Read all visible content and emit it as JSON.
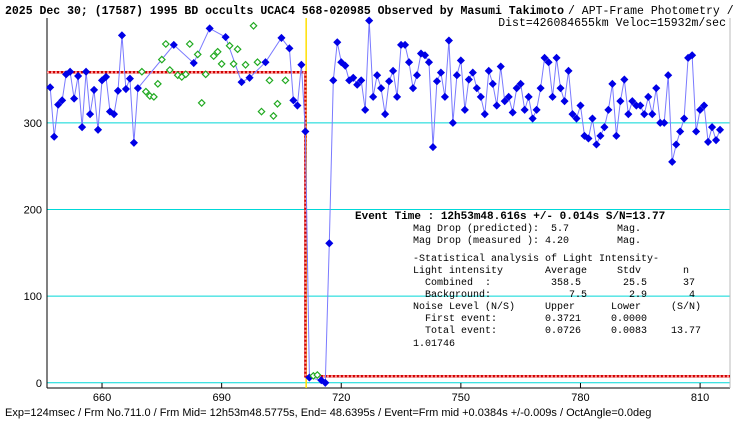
{
  "chart_data": {
    "type": "line",
    "title": "2025 Dec 30; (17587) 1995 BD occults UCAC4 568-020985 Observed by Masumi Takimoto",
    "method": "/ APT-Frame Photometry /",
    "subtitle": "Dist=426084655km Veloc=15932m/sec",
    "footer": "Exp=124msec / Frm No.711.0 / Frm Mid= 12h53m48.5775s,  End= 48.6395s / Event=Frm mid +0.0384s +/-0.009s / OctAngle=0.0deg",
    "event_text": "Event Time : 12h53m48.616s +/- 0.014s S/N=13.77",
    "annotations": [
      "Mag Drop (predicted):  5.7        Mag.",
      "Mag Drop (measured ): 4.20        Mag.",
      "-Statistical analysis of Light Intensity-",
      "Light intensity       Average     Stdv       n",
      "  Combined  :          358.5       25.5      37",
      "  Background:             7.5       2.9       4",
      "Noise Level (N/S)     Upper      Lower     (S/N)",
      "  First event:        0.3721     0.0000",
      "  Total event:        0.0726     0.0083    13.77",
      "1.01746"
    ],
    "xlim": [
      646.2,
      817.5
    ],
    "ylim": [
      -6,
      421
    ],
    "xticks": [
      660,
      690,
      720,
      750,
      780,
      810
    ],
    "yticks": [
      0,
      100,
      200,
      300
    ],
    "grid": true,
    "grid_color": "#00d8d8",
    "event_line": {
      "x": 711.2,
      "color": "#ffe000"
    },
    "model": {
      "color": "#d00000",
      "x": [
        646.2,
        711,
        711,
        817.5
      ],
      "values": [
        358.5,
        358.5,
        7.5,
        7.5
      ]
    },
    "series": [
      {
        "color": "#0000e6",
        "line_color": "#7a7aff",
        "marker": "filled",
        "x": [
          647,
          648,
          649,
          650,
          651,
          652,
          653,
          654,
          655,
          656,
          657,
          658,
          659,
          660,
          661,
          662,
          663,
          664,
          665,
          666,
          667,
          668,
          669,
          678,
          683,
          687,
          691,
          695,
          697,
          701,
          705,
          707,
          708,
          709,
          710,
          711,
          712,
          715,
          716,
          717,
          718,
          719,
          720,
          721,
          722,
          723,
          724,
          725,
          726,
          727,
          728,
          729,
          730,
          731,
          732,
          733,
          734,
          735,
          736,
          737,
          738,
          739,
          740,
          741,
          742,
          743,
          744,
          745,
          746,
          747,
          748,
          749,
          750,
          751,
          752,
          753,
          754,
          755,
          756,
          757,
          758,
          759,
          760,
          761,
          762,
          763,
          764,
          765,
          766,
          767,
          768,
          769,
          770,
          771,
          772,
          773,
          774,
          775,
          776,
          777,
          778,
          779,
          780,
          781,
          782,
          783,
          784,
          785,
          786,
          787,
          788,
          789,
          790,
          791,
          792,
          793,
          794,
          795,
          796,
          797,
          798,
          799,
          800,
          801,
          802,
          803,
          804,
          805,
          806,
          807,
          808,
          809,
          810,
          811,
          812,
          813,
          814,
          815
        ],
        "values": [
          341,
          284,
          321,
          326,
          356,
          359,
          328,
          354,
          295,
          359,
          310,
          338,
          292,
          349,
          353,
          313,
          310,
          337,
          401,
          339,
          351,
          277,
          340,
          390,
          369,
          409,
          399,
          347,
          352,
          370,
          398,
          386,
          326,
          320,
          367,
          290,
          6,
          3,
          0,
          161,
          349,
          393,
          370,
          366,
          349,
          352,
          344,
          349,
          315,
          418,
          330,
          355,
          340,
          310,
          348,
          360,
          330,
          390,
          390,
          370,
          340,
          355,
          380,
          378,
          370,
          272,
          348,
          358,
          330,
          395,
          300,
          355,
          372,
          315,
          350,
          358,
          340,
          330,
          310,
          360,
          345,
          320,
          365,
          325,
          330,
          312,
          340,
          345,
          315,
          330,
          305,
          315,
          340,
          375,
          370,
          330,
          375,
          340,
          325,
          360,
          310,
          305,
          320,
          285,
          282,
          305,
          275,
          285,
          295,
          315,
          345,
          285,
          325,
          350,
          310,
          325,
          320,
          320,
          310,
          330,
          310,
          340,
          300,
          300,
          355,
          255,
          275,
          290,
          305,
          375,
          378,
          290,
          315,
          320,
          278,
          295,
          280,
          292
        ]
      },
      {
        "color": "#22aa22",
        "marker": "hollow",
        "x": [
          670,
          671,
          672,
          673,
          674,
          675,
          676,
          677,
          679,
          680,
          681,
          682,
          684,
          685,
          686,
          688,
          689,
          690,
          692,
          693,
          694,
          696,
          698,
          699,
          700,
          702,
          703,
          704,
          706,
          713,
          714
        ],
        "values": [
          359,
          336,
          331,
          330,
          345,
          373,
          391,
          361,
          355,
          353,
          356,
          391,
          379,
          323,
          356,
          377,
          382,
          368,
          389,
          368,
          385,
          367,
          412,
          370,
          313,
          349,
          308,
          322,
          349,
          8,
          9
        ]
      }
    ]
  }
}
